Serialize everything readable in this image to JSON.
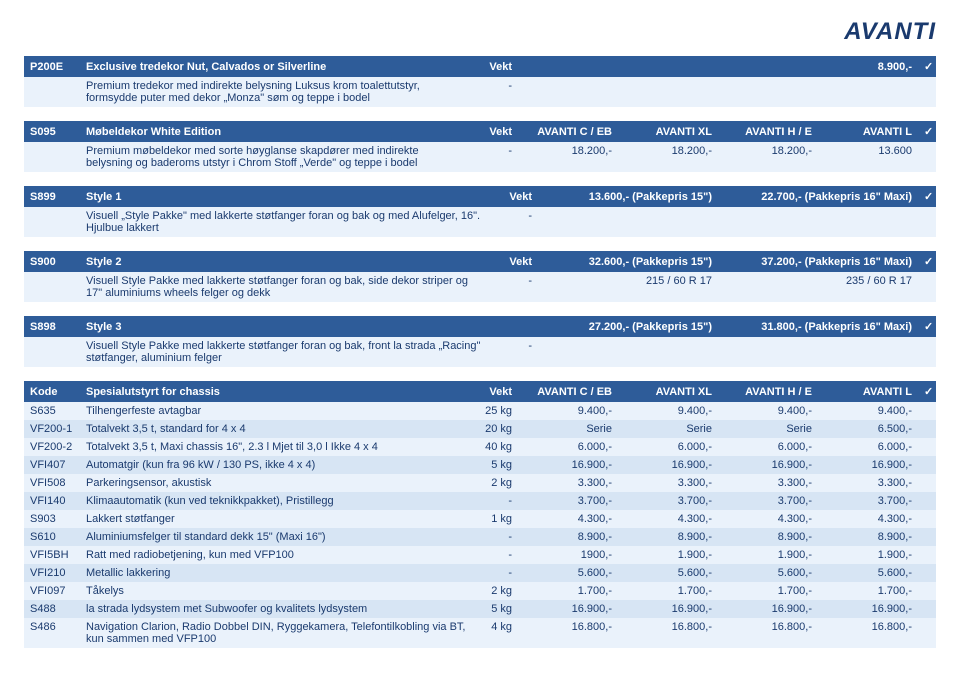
{
  "brand": "AVANTI",
  "p200e": {
    "code": "P200E",
    "title": "Exclusive tredekor Nut, Calvados or Silverline",
    "vekt_label": "Vekt",
    "price": "8.900,-",
    "check": "✓",
    "desc": "Premium tredekor med indirekte belysning Luksus krom toalettutstyr, formsydde puter med dekor „Monza\" søm og teppe i bodel",
    "desc_vekt": "-"
  },
  "s095": {
    "code": "S095",
    "title": "Møbeldekor White Edition",
    "vekt_label": "Vekt",
    "col1": "AVANTI C / EB",
    "col2": "AVANTI XL",
    "col3": "AVANTI H / E",
    "col4": "AVANTI L",
    "check": "✓",
    "desc": "Premium møbeldekor med sorte høyglanse skapdører med indirekte belysning og baderoms utstyr i Chrom Stoff „Verde\" og teppe i bodel",
    "v_vekt": "-",
    "v1": "18.200,-",
    "v2": "18.200,-",
    "v3": "18.200,-",
    "v4": "13.600"
  },
  "s899": {
    "code": "S899",
    "title": "Style 1",
    "vekt_label": "Vekt",
    "p15": "13.600,- (Pakkepris 15\")",
    "p16": "22.700,- (Pakkepris 16\" Maxi)",
    "check": "✓",
    "desc": "Visuell „Style Pakke\" med lakkerte støtfanger foran og bak og med Alufelger, 16\". Hjulbue lakkert",
    "desc_vekt": "-"
  },
  "s900": {
    "code": "S900",
    "title": "Style 2",
    "vekt_label": "Vekt",
    "p15": "32.600,- (Pakkepris 15\")",
    "p16": "37.200,- (Pakkepris 16\" Maxi)",
    "check": "✓",
    "desc": "Visuell Style Pakke med lakkerte støtfanger foran og bak, side dekor striper og 17\" aluminiums wheels felger og dekk",
    "desc_vekt": "-",
    "d1": "215 / 60 R 17",
    "d2": "235 / 60 R 17"
  },
  "s898": {
    "code": "S898",
    "title": "Style 3",
    "p15": "27.200,- (Pakkepris 15\")",
    "p16": "31.800,- (Pakkepris 16\" Maxi)",
    "check": "✓",
    "desc": "Visuell Style Pakke med lakkerte støtfanger foran og bak, front la strada „Racing\" støtfanger, aluminium felger",
    "desc_vekt": "-"
  },
  "chassis": {
    "h_code": "Kode",
    "h_desc": "Spesialutstyrt for chassis",
    "h_vekt": "Vekt",
    "h1": "AVANTI C / EB",
    "h2": "AVANTI XL",
    "h3": "AVANTI H / E",
    "h4": "AVANTI L",
    "h_chk": "✓",
    "rows": [
      {
        "code": "S635",
        "desc": "Tilhengerfeste avtagbar",
        "vekt": "25 kg",
        "v1": "9.400,-",
        "v2": "9.400,-",
        "v3": "9.400,-",
        "v4": "9.400,-"
      },
      {
        "code": "VF200-1",
        "desc": "Totalvekt 3,5 t, standard for 4 x 4",
        "vekt": "20 kg",
        "v1": "Serie",
        "v2": "Serie",
        "v3": "Serie",
        "v4": "6.500,-"
      },
      {
        "code": "VF200-2",
        "desc": "Totalvekt 3,5 t, Maxi chassis 16\", 2.3 l Mjet til 3,0 l Ikke 4 x 4",
        "vekt": "40 kg",
        "v1": "6.000,-",
        "v2": "6.000,-",
        "v3": "6.000,-",
        "v4": "6.000,-"
      },
      {
        "code": "VFI407",
        "desc": "Automatgir (kun fra 96 kW / 130 PS, ikke 4 x 4)",
        "vekt": "5 kg",
        "v1": "16.900,-",
        "v2": "16.900,-",
        "v3": "16.900,-",
        "v4": "16.900,-"
      },
      {
        "code": "VFI508",
        "desc": "Parkeringsensor, akustisk",
        "vekt": "2 kg",
        "v1": "3.300,-",
        "v2": "3.300,-",
        "v3": "3.300,-",
        "v4": "3.300,-"
      },
      {
        "code": "VFI140",
        "desc": "Klimaautomatik (kun ved teknikkpakket), Pristillegg",
        "vekt": "-",
        "v1": "3.700,-",
        "v2": "3.700,-",
        "v3": "3.700,-",
        "v4": "3.700,-"
      },
      {
        "code": "S903",
        "desc": "Lakkert støtfanger",
        "vekt": "1 kg",
        "v1": "4.300,-",
        "v2": "4.300,-",
        "v3": "4.300,-",
        "v4": "4.300,-"
      },
      {
        "code": "S610",
        "desc": "Aluminiumsfelger til standard dekk 15\" (Maxi 16\")",
        "vekt": "-",
        "v1": "8.900,-",
        "v2": "8.900,-",
        "v3": "8.900,-",
        "v4": "8.900,-"
      },
      {
        "code": "VFI5BH",
        "desc": "Ratt med radiobetjening, kun med VFP100",
        "vekt": "-",
        "v1": "1900,-",
        "v2": "1.900,-",
        "v3": "1.900,-",
        "v4": "1.900,-"
      },
      {
        "code": "VFI210",
        "desc": "Metallic lakkering",
        "vekt": "-",
        "v1": "5.600,-",
        "v2": "5.600,-",
        "v3": "5.600,-",
        "v4": "5.600,-"
      },
      {
        "code": "VFI097",
        "desc": "Tåkelys",
        "vekt": "2 kg",
        "v1": "1.700,-",
        "v2": "1.700,-",
        "v3": "1.700,-",
        "v4": "1.700,-"
      },
      {
        "code": "S488",
        "desc": "la strada lydsystem met Subwoofer og kvalitets lydsystem",
        "vekt": "5 kg",
        "v1": "16.900,-",
        "v2": "16.900,-",
        "v3": "16.900,-",
        "v4": "16.900,-"
      },
      {
        "code": "S486",
        "desc": "Navigation Clarion, Radio Dobbel DIN, Ryggekamera, Telefontilkobling via BT, kun sammen med VFP100",
        "vekt": "4 kg",
        "v1": "16.800,-",
        "v2": "16.800,-",
        "v3": "16.800,-",
        "v4": "16.800,-"
      }
    ]
  }
}
